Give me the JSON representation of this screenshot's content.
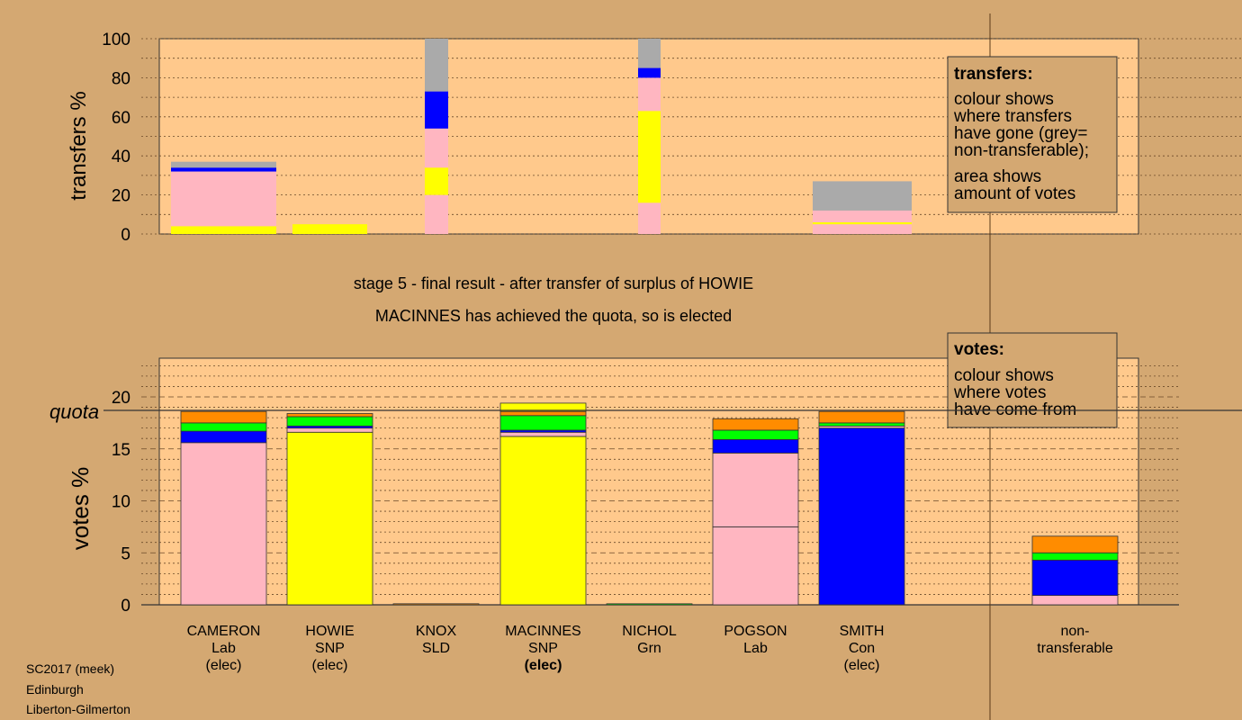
{
  "colors": {
    "background": "#d4a872",
    "panel": "#ffc98c",
    "pink": "#ffb6c1",
    "yellow": "#ffff00",
    "blue": "#0000ff",
    "green": "#00ff00",
    "orange": "#ff8c00",
    "grey": "#aaaaaa",
    "legend_fill": "#d4a872"
  },
  "stage_title": "stage 5 - final result - after transfer of surplus of HOWIE",
  "stage_subtitle": "MACINNES has achieved the quota, so is elected",
  "transfers_legend": {
    "title": "transfers:",
    "line1": "colour shows",
    "line2": "where transfers",
    "line3": "have gone (grey=",
    "line4": "non-transferable);",
    "line5": "area shows",
    "line6": "amount of votes"
  },
  "votes_legend": {
    "title": "votes:",
    "line1": "colour shows",
    "line2": "where votes",
    "line3": "have come from"
  },
  "footer": {
    "line1": "SC2017 (meek)",
    "line2": "Edinburgh",
    "line3": "Liberton-Gilmerton"
  },
  "chart_data": [
    {
      "type": "bar",
      "ylabel": "transfers %",
      "ylim": [
        0,
        100
      ],
      "yticks": [
        0,
        20,
        40,
        60,
        80,
        100
      ],
      "bars": [
        {
          "segments": [
            {
              "color": "yellow",
              "value": 4
            },
            {
              "color": "pink",
              "value": 28
            },
            {
              "color": "blue",
              "value": 2
            },
            {
              "color": "grey",
              "value": 3
            }
          ]
        },
        {
          "segments": [
            {
              "color": "yellow",
              "value": 5
            }
          ]
        },
        {
          "segments": [
            {
              "color": "pink",
              "value": 20
            },
            {
              "color": "yellow",
              "value": 14
            },
            {
              "color": "pink",
              "value": 20
            },
            {
              "color": "blue",
              "value": 19
            },
            {
              "color": "grey",
              "value": 27
            }
          ]
        },
        {
          "segments": [
            {
              "color": "pink",
              "value": 16
            },
            {
              "color": "yellow",
              "value": 47
            },
            {
              "color": "pink",
              "value": 17
            },
            {
              "color": "blue",
              "value": 5
            },
            {
              "color": "grey",
              "value": 15
            }
          ]
        },
        {
          "segments": [
            {
              "color": "pink",
              "value": 5
            },
            {
              "color": "yellow",
              "value": 1
            },
            {
              "color": "pink",
              "value": 6
            },
            {
              "color": "grey",
              "value": 15
            }
          ]
        }
      ]
    },
    {
      "type": "bar",
      "ylabel": "votes %",
      "quota_label": "quota",
      "quota": 18.7,
      "ylim": [
        0,
        24
      ],
      "yticks": [
        0,
        5,
        10,
        15,
        20
      ],
      "candidates": [
        {
          "name": "CAMERON",
          "party": "Lab",
          "status": "(elec)",
          "bold": false,
          "segments": [
            {
              "color": "pink",
              "value": 15.6
            },
            {
              "color": "blue",
              "value": 1.1
            },
            {
              "color": "green",
              "value": 0.8
            },
            {
              "color": "orange",
              "value": 1.1
            }
          ]
        },
        {
          "name": "HOWIE",
          "party": "SNP",
          "status": "(elec)",
          "bold": false,
          "segments": [
            {
              "color": "yellow",
              "value": 16.6
            },
            {
              "color": "pink",
              "value": 0.4
            },
            {
              "color": "blue",
              "value": 0.2
            },
            {
              "color": "green",
              "value": 0.9
            },
            {
              "color": "orange",
              "value": 0.3
            }
          ]
        },
        {
          "name": "KNOX",
          "party": "SLD",
          "status": "",
          "bold": false,
          "segments": [
            {
              "color": "orange",
              "value": 0.1
            }
          ]
        },
        {
          "name": "MACINNES",
          "party": "SNP",
          "status": "(elec)",
          "bold": true,
          "segments": [
            {
              "color": "yellow",
              "value": 16.2
            },
            {
              "color": "pink",
              "value": 0.4
            },
            {
              "color": "blue",
              "value": 0.2
            },
            {
              "color": "green",
              "value": 1.4
            },
            {
              "color": "orange",
              "value": 0.4
            },
            {
              "color": "yellow",
              "value": 0.8
            }
          ]
        },
        {
          "name": "NICHOL",
          "party": "Grn",
          "status": "",
          "bold": false,
          "segments": [
            {
              "color": "green",
              "value": 0.1
            }
          ]
        },
        {
          "name": "POGSON",
          "party": "Lab",
          "status": "",
          "bold": false,
          "segments": [
            {
              "color": "pink",
              "value": 7.5
            },
            {
              "color": "pink",
              "value": 7.1
            },
            {
              "color": "blue",
              "value": 1.3
            },
            {
              "color": "green",
              "value": 0.9
            },
            {
              "color": "orange",
              "value": 1.1
            }
          ]
        },
        {
          "name": "SMITH",
          "party": "Con",
          "status": "(elec)",
          "bold": false,
          "segments": [
            {
              "color": "blue",
              "value": 17.0
            },
            {
              "color": "pink",
              "value": 0.2
            },
            {
              "color": "green",
              "value": 0.3
            },
            {
              "color": "orange",
              "value": 1.1
            }
          ]
        },
        {
          "name": "non-",
          "party": "transferable",
          "status": "",
          "bold": false,
          "segments": [
            {
              "color": "pink",
              "value": 0.9
            },
            {
              "color": "blue",
              "value": 3.4
            },
            {
              "color": "green",
              "value": 0.7
            },
            {
              "color": "orange",
              "value": 1.6
            }
          ]
        }
      ]
    }
  ]
}
